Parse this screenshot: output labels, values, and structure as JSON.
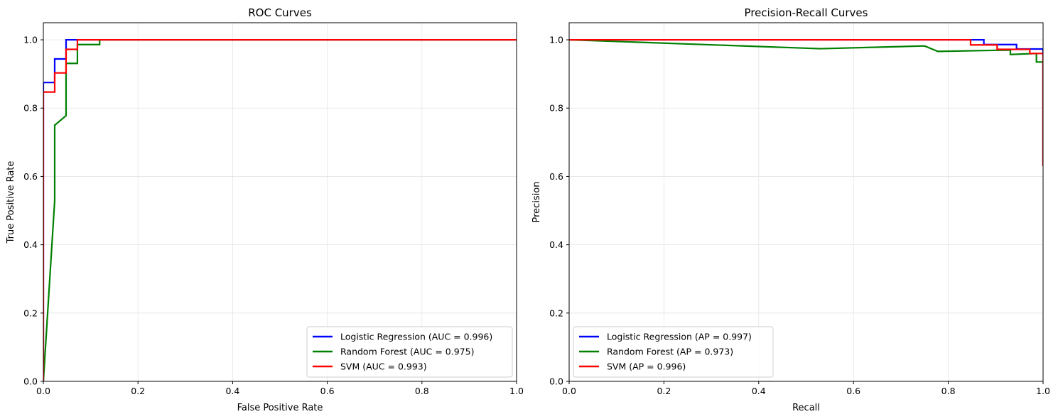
{
  "chart_data": [
    {
      "type": "line",
      "title": "ROC Curves",
      "xlabel": "False Positive Rate",
      "ylabel": "True Positive Rate",
      "xlim": [
        0,
        1
      ],
      "ylim": [
        0,
        1.05
      ],
      "xticks": [
        "0.0",
        "0.2",
        "0.4",
        "0.6",
        "0.8",
        "1.0"
      ],
      "yticks": [
        "0.0",
        "0.2",
        "0.4",
        "0.6",
        "0.8",
        "1.0"
      ],
      "grid": true,
      "legend_position": "lower-right",
      "series": [
        {
          "name": "Logistic Regression (AUC = 0.996)",
          "color": "#0000ff",
          "x": [
            0,
            0,
            0.024,
            0.024,
            0.048,
            0.048,
            1.0
          ],
          "y": [
            0,
            0.875,
            0.875,
            0.944,
            0.944,
            1.0,
            1.0
          ]
        },
        {
          "name": "Random Forest (AUC = 0.975)",
          "color": "#008000",
          "x": [
            0,
            0.024,
            0.024,
            0.048,
            0.048,
            0.072,
            0.072,
            0.119,
            0.119,
            1.0
          ],
          "y": [
            0,
            0.53,
            0.75,
            0.778,
            0.931,
            0.931,
            0.986,
            0.986,
            1.0,
            1.0
          ]
        },
        {
          "name": "SVM (AUC = 0.993)",
          "color": "#ff0000",
          "x": [
            0,
            0,
            0.024,
            0.024,
            0.048,
            0.048,
            0.072,
            0.072,
            1.0
          ],
          "y": [
            0,
            0.847,
            0.847,
            0.903,
            0.903,
            0.972,
            0.972,
            1.0,
            1.0
          ]
        }
      ]
    },
    {
      "type": "line",
      "title": "Precision-Recall Curves",
      "xlabel": "Recall",
      "ylabel": "Precision",
      "xlim": [
        0,
        1
      ],
      "ylim": [
        0,
        1.05
      ],
      "xticks": [
        "0.0",
        "0.2",
        "0.4",
        "0.6",
        "0.8",
        "1.0"
      ],
      "yticks": [
        "0.0",
        "0.2",
        "0.4",
        "0.6",
        "0.8",
        "1.0"
      ],
      "grid": true,
      "legend_position": "lower-left",
      "series": [
        {
          "name": "Logistic Regression (AP = 0.997)",
          "color": "#0000ff",
          "x": [
            1.0,
            1.0,
            0.944,
            0.944,
            0.875,
            0.875,
            0.0
          ],
          "y": [
            0.63,
            0.973,
            0.973,
            0.986,
            0.986,
            1.0,
            1.0
          ]
        },
        {
          "name": "Random Forest (AP = 0.973)",
          "color": "#008000",
          "x": [
            1.0,
            1.0,
            0.986,
            0.986,
            0.931,
            0.931,
            0.778,
            0.75,
            0.53,
            0.0
          ],
          "y": [
            0.63,
            0.935,
            0.935,
            0.96,
            0.957,
            0.97,
            0.966,
            0.982,
            0.974,
            1.0
          ]
        },
        {
          "name": "SVM (AP = 0.996)",
          "color": "#ff0000",
          "x": [
            1.0,
            1.0,
            0.972,
            0.972,
            0.903,
            0.903,
            0.847,
            0.847,
            0.0
          ],
          "y": [
            0.63,
            0.96,
            0.96,
            0.972,
            0.972,
            0.985,
            0.985,
            1.0,
            1.0
          ]
        }
      ]
    }
  ]
}
